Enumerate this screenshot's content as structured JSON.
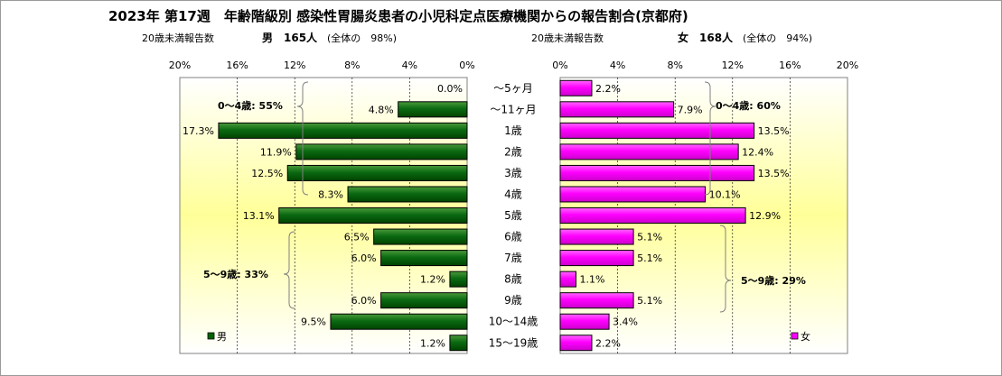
{
  "chart_data": {
    "type": "bar",
    "title": "2023年 第17週　年齢階級別 感染性胃腸炎患者の小児科定点医療機関からの報告割合(京都府)",
    "male_header": {
      "report_label": "20歳未満報告数",
      "sex_label": "男",
      "count_text": "165人",
      "ratio_text": "(全体の　98%)"
    },
    "female_header": {
      "report_label": "20歳未満報告数",
      "sex_label": "女",
      "count_text": "168人",
      "ratio_text": "(全体の　94%)"
    },
    "categories": [
      "～5ヶ月",
      "～11ヶ月",
      "1歳",
      "2歳",
      "3歳",
      "4歳",
      "5歳",
      "6歳",
      "7歳",
      "8歳",
      "9歳",
      "10～14歳",
      "15～19歳"
    ],
    "series": [
      {
        "name": "男",
        "color": "#006400",
        "values": [
          0.0,
          4.8,
          17.3,
          11.9,
          12.5,
          8.3,
          13.1,
          6.5,
          6.0,
          1.2,
          6.0,
          9.5,
          1.2
        ],
        "labels": [
          "0.0%",
          "4.8%",
          "17.3%",
          "11.9%",
          "12.5%",
          "8.3%",
          "13.1%",
          "6.5%",
          "6.0%",
          "1.2%",
          "6.0%",
          "9.5%",
          "1.2%"
        ]
      },
      {
        "name": "女",
        "color": "#ff00ff",
        "values": [
          2.2,
          7.9,
          13.5,
          12.4,
          13.5,
          10.1,
          12.9,
          5.1,
          5.1,
          1.1,
          5.1,
          3.4,
          2.2
        ],
        "labels": [
          "2.2%",
          "7.9%",
          "13.5%",
          "12.4%",
          "13.5%",
          "10.1%",
          "12.9%",
          "5.1%",
          "5.1%",
          "1.1%",
          "5.1%",
          "3.4%",
          "2.2%"
        ]
      }
    ],
    "xlim": [
      0,
      20
    ],
    "ticks": [
      "20%",
      "16%",
      "12%",
      "8%",
      "4%",
      "0%"
    ],
    "ticks_right": [
      "0%",
      "4%",
      "8%",
      "12%",
      "16%",
      "20%"
    ],
    "annotations": {
      "male_0_4": "0～4歳: 55%",
      "male_5_9": "5～9歳: 33%",
      "female_0_4": "0～4歳: 60%",
      "female_5_9": "5～9歳: 29%"
    },
    "legend": {
      "male": "男",
      "female": "女",
      "placement": "bottom"
    },
    "grid": true
  }
}
